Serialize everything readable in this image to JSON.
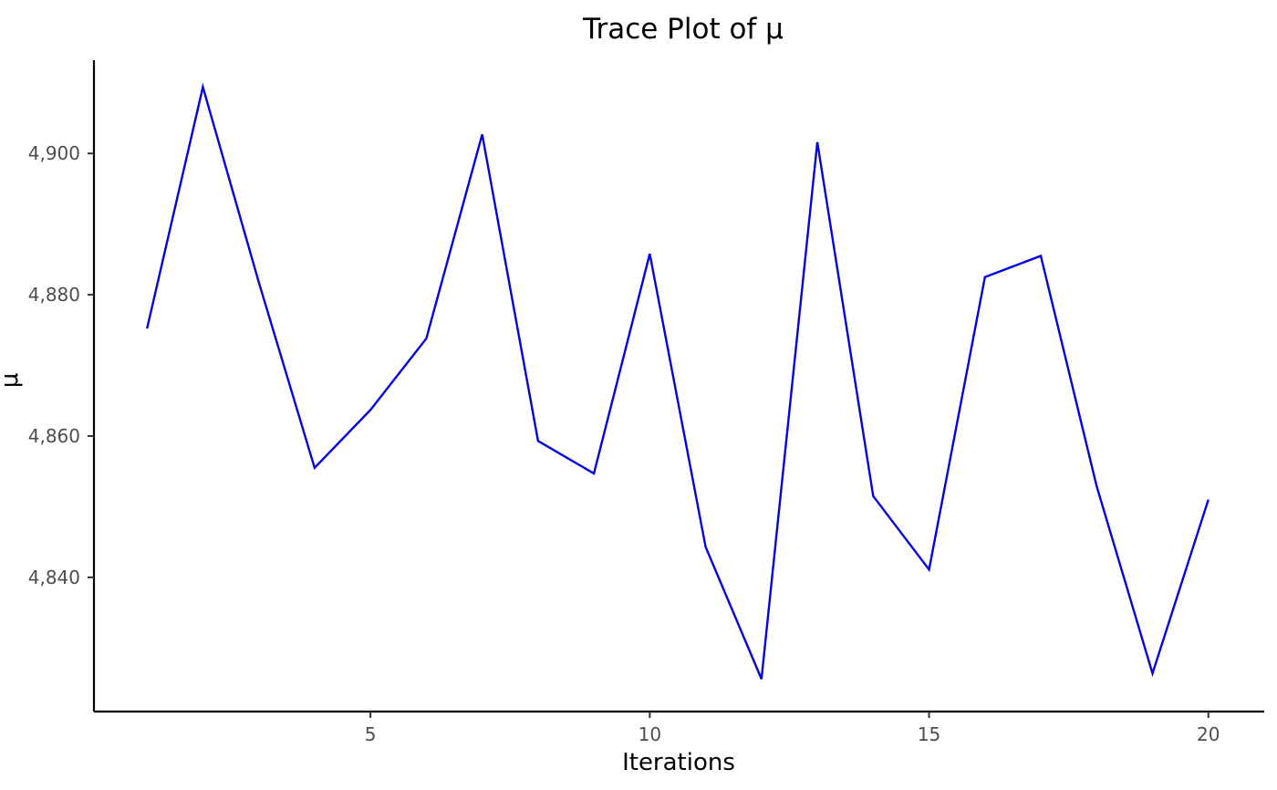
{
  "chart_data": {
    "type": "line",
    "title": "Trace Plot of  μ",
    "xlabel": "Iterations",
    "ylabel": "μ",
    "xlim": [
      0.05,
      21.0
    ],
    "ylim": [
      4821.0,
      4913.2
    ],
    "x_ticks": [
      5,
      10,
      15,
      20
    ],
    "y_ticks": [
      4840,
      4860,
      4880,
      4900
    ],
    "y_tick_labels": [
      "4,840",
      "4,860",
      "4,880",
      "4,900"
    ],
    "grid": false,
    "legend": "none",
    "colors": {
      "line": "#0000e6",
      "axis": "#000000",
      "tick_label": "#4d4d4d"
    },
    "series": [
      {
        "x": [
          1,
          2,
          3,
          4,
          5,
          6,
          7,
          8,
          9,
          10,
          11,
          12,
          13,
          14,
          15,
          16,
          17,
          18,
          19,
          20
        ],
        "values": [
          4875.2,
          4909.4,
          4881.8,
          4855.5,
          4863.7,
          4873.8,
          4902.7,
          4859.3,
          4854.7,
          4885.8,
          4844.3,
          4825.6,
          4901.6,
          4851.5,
          4841.1,
          4882.5,
          4885.5,
          4852.9,
          4826.4,
          4851.0
        ]
      }
    ]
  }
}
